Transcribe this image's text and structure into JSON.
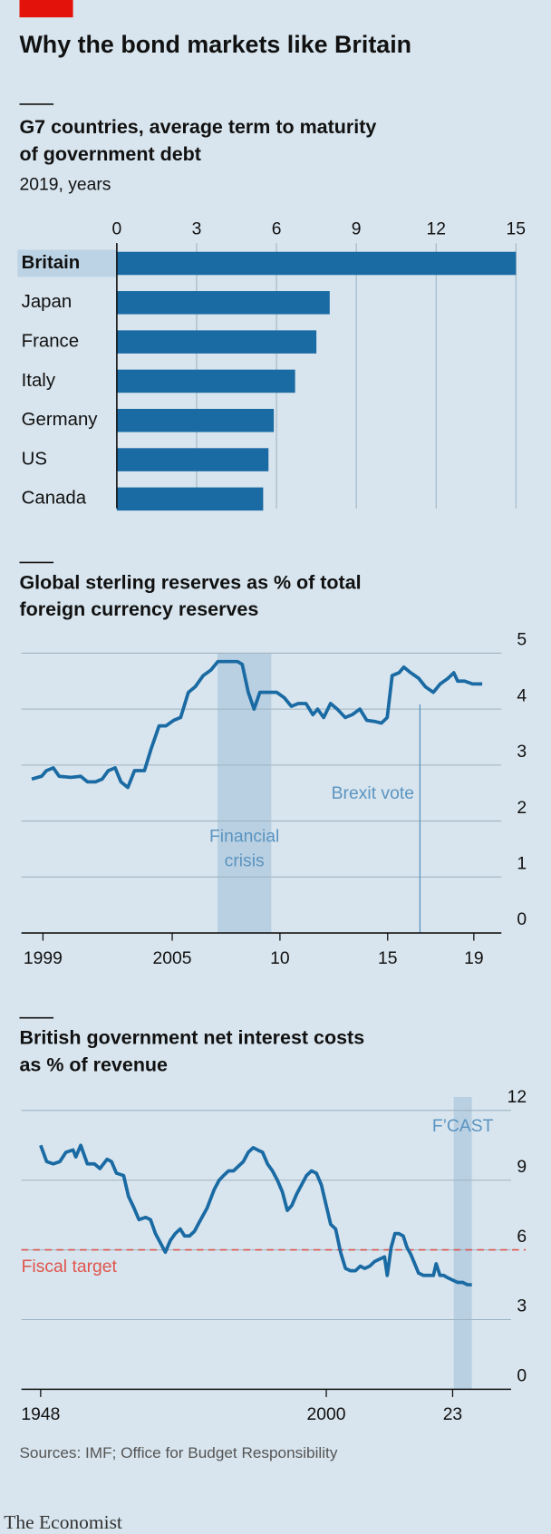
{
  "title": "Why the bond markets like Britain",
  "source": "Sources: IMF; Office for Budget Responsibility",
  "brand": "The Economist",
  "chart_data": [
    {
      "type": "bar",
      "title": [
        "G7 countries, average term to maturity",
        "of government debt"
      ],
      "subtitle": "2019, years",
      "categories": [
        "Britain",
        "Japan",
        "France",
        "Italy",
        "Germany",
        "US",
        "Canada"
      ],
      "values": [
        15,
        8,
        7.5,
        6.7,
        5.9,
        5.7,
        5.5
      ],
      "color": "#1a6aa3",
      "highlight": "Britain",
      "highlight_color": "#bcd3e5",
      "xlim": [
        0,
        15
      ],
      "xticks": [
        0,
        3,
        6,
        9,
        12,
        15
      ],
      "grid": true
    },
    {
      "type": "line",
      "title": [
        "Global sterling reserves as % of total",
        "foreign currency reserves"
      ],
      "x": [
        1998.48,
        1998.94,
        1999.16,
        1999.48,
        1999.75,
        2000.3,
        2000.75,
        2001.07,
        2001.44,
        2001.75,
        2002.03,
        2002.35,
        2002.62,
        2002.94,
        2003.25,
        2003.71,
        2004.03,
        2004.39,
        2004.71,
        2005.07,
        2005.39,
        2005.75,
        2006.07,
        2006.44,
        2006.8,
        2007.12,
        2007.44,
        2007.8,
        2008.03,
        2008.25,
        2008.53,
        2008.8,
        2009.07,
        2009.39,
        2009.85,
        2010.21,
        2010.53,
        2010.85,
        2011.21,
        2011.53,
        2011.75,
        2012.03,
        2012.35,
        2012.66,
        2013.03,
        2013.35,
        2013.71,
        2014.03,
        2014.39,
        2014.71,
        2014.98,
        2015.21,
        2015.53,
        2015.75,
        2016.07,
        2016.44,
        2016.75,
        2017.12,
        2017.44,
        2017.8,
        2018.07,
        2018.25,
        2018.57,
        2018.94,
        2019.39
      ],
      "values": [
        2.75,
        2.8,
        2.9,
        2.95,
        2.8,
        2.78,
        2.8,
        2.7,
        2.7,
        2.75,
        2.9,
        2.95,
        2.7,
        2.6,
        2.9,
        2.9,
        3.3,
        3.7,
        3.7,
        3.8,
        3.85,
        4.3,
        4.4,
        4.6,
        4.7,
        4.85,
        4.85,
        4.85,
        4.85,
        4.8,
        4.3,
        4.0,
        4.3,
        4.3,
        4.3,
        4.2,
        4.05,
        4.1,
        4.1,
        3.9,
        4.0,
        3.85,
        4.1,
        4.0,
        3.85,
        3.9,
        4.0,
        3.8,
        3.78,
        3.75,
        3.85,
        4.6,
        4.65,
        4.75,
        4.65,
        4.55,
        4.4,
        4.3,
        4.45,
        4.55,
        4.65,
        4.5,
        4.5,
        4.45,
        4.45
      ],
      "color": "#1a6aa3",
      "xlim": [
        1998,
        2019.6
      ],
      "xticks": [
        1999,
        2005,
        {
          "value": 2010,
          "label": "10"
        },
        {
          "value": 2015,
          "label": "15"
        },
        {
          "value": 2019,
          "label": "19"
        }
      ],
      "ylim": [
        0,
        5
      ],
      "yticks": [
        0,
        1,
        2,
        3,
        4,
        5
      ],
      "grid": true,
      "shaded_regions": [
        {
          "label": [
            "Financial",
            "crisis"
          ],
          "xlim": [
            2007.1,
            2009.6
          ],
          "color": "#b9d0e2"
        }
      ],
      "vlines": [
        {
          "label": "Brexit vote",
          "x": 2016.5,
          "color": "#5b94c0"
        }
      ]
    },
    {
      "type": "line",
      "title": [
        "British government net interest costs",
        "as % of revenue"
      ],
      "x": [
        1948.0,
        1949.1,
        1950.3,
        1951.5,
        1952.6,
        1953.9,
        1954.4,
        1955.3,
        1956.5,
        1957.8,
        1958.8,
        1960.1,
        1960.9,
        1961.8,
        1963.1,
        1964.0,
        1965.0,
        1965.9,
        1967.1,
        1968.0,
        1968.9,
        1969.8,
        1970.7,
        1971.6,
        1972.5,
        1973.4,
        1974.2,
        1975.1,
        1976.0,
        1976.9,
        1978.3,
        1979.6,
        1980.5,
        1981.3,
        1982.2,
        1983.1,
        1984.0,
        1984.9,
        1985.8,
        1986.7,
        1987.5,
        1988.4,
        1989.3,
        1990.2,
        1991.1,
        1992.0,
        1992.9,
        1993.7,
        1994.6,
        1995.5,
        1996.4,
        1997.3,
        1998.2,
        1999.1,
        2000.0,
        2000.8,
        2001.7,
        2002.6,
        2003.5,
        2004.4,
        2005.3,
        2006.2,
        2007.0,
        2007.9,
        2008.8,
        2009.7,
        2010.6,
        2011.1,
        2011.8,
        2012.5,
        2013.2,
        2014.0,
        2014.7,
        2015.4,
        2016.1,
        2016.8,
        2017.7,
        2018.6,
        2019.5,
        2020.0,
        2020.7,
        2021.4,
        2022.1,
        2023.0,
        2023.9,
        2024.8,
        2025.7,
        2026.5
      ],
      "values": [
        10.5,
        9.8,
        9.7,
        9.8,
        10.2,
        10.3,
        10.0,
        10.5,
        9.7,
        9.7,
        9.5,
        9.9,
        9.8,
        9.3,
        9.2,
        8.3,
        7.8,
        7.3,
        7.4,
        7.3,
        6.7,
        6.3,
        5.9,
        6.4,
        6.7,
        6.9,
        6.6,
        6.6,
        6.8,
        7.2,
        7.8,
        8.6,
        9.0,
        9.2,
        9.4,
        9.4,
        9.6,
        9.8,
        10.2,
        10.4,
        10.3,
        10.2,
        9.7,
        9.4,
        9.0,
        8.5,
        7.7,
        7.9,
        8.4,
        8.8,
        9.2,
        9.4,
        9.3,
        8.8,
        7.9,
        7.1,
        6.9,
        5.9,
        5.2,
        5.1,
        5.1,
        5.3,
        5.2,
        5.3,
        5.5,
        5.6,
        5.7,
        4.9,
        6.1,
        6.7,
        6.7,
        6.6,
        6.1,
        5.8,
        5.4,
        5.0,
        4.9,
        4.9,
        4.9,
        5.4,
        4.9,
        4.9,
        4.8,
        4.7,
        4.6,
        4.6,
        4.5,
        4.5
      ],
      "color": "#1a6aa3",
      "xlim": [
        1944.5,
        2036.3
      ],
      "xticks": [
        1948,
        2000,
        {
          "value": 2023,
          "label": "23"
        }
      ],
      "ylim": [
        0,
        12
      ],
      "yticks": [
        0,
        3,
        6,
        9,
        12
      ],
      "grid": true,
      "shaded_regions": [
        {
          "label": "F’CAST",
          "xlim": [
            2023.2,
            2026.5
          ],
          "color": "#b9d0e2"
        }
      ],
      "hlines": [
        {
          "label": "Fiscal target",
          "y": 6,
          "color": "#e0544c",
          "style": "dashed"
        }
      ]
    }
  ]
}
